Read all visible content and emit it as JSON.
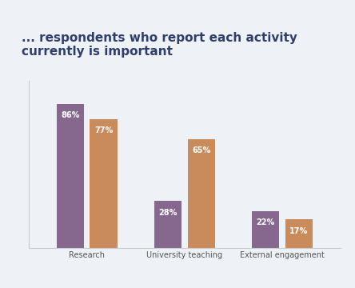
{
  "chart_data": {
    "type": "bar",
    "title": "... respondents who report each activity currently is important",
    "categories": [
      "Research",
      "University teaching",
      "External engagement"
    ],
    "series": [
      {
        "color": "#86688f",
        "values": [
          86,
          28,
          22
        ],
        "value_labels": [
          "86%",
          "28%",
          "22%"
        ]
      },
      {
        "color": "#c98a5c",
        "values": [
          77,
          65,
          17
        ],
        "value_labels": [
          "77%",
          "65%",
          "17%"
        ]
      }
    ],
    "ylim": [
      0,
      100
    ],
    "yticks": [],
    "grid": false,
    "data_labels": true,
    "tick_labels": "x"
  }
}
